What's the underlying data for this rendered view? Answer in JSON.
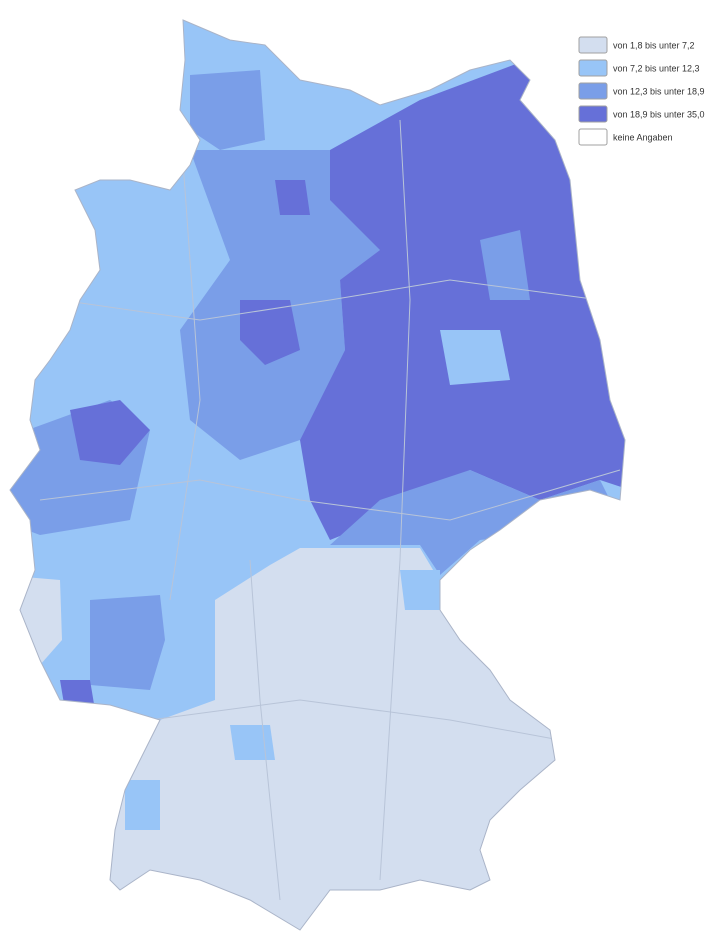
{
  "legend": {
    "items": [
      {
        "label": "von 1,8 bis unter 7,2",
        "color": "#d3deef"
      },
      {
        "label": "von 7,2 bis unter 12,3",
        "color": "#98c5f7"
      },
      {
        "label": "von 12,3 bis unter 18,9",
        "color": "#7a9ee8"
      },
      {
        "label": "von 18,9 bis unter 35,0",
        "color": "#6670d8"
      },
      {
        "label": "keine Angaben",
        "color": "#ffffff"
      }
    ]
  }
}
